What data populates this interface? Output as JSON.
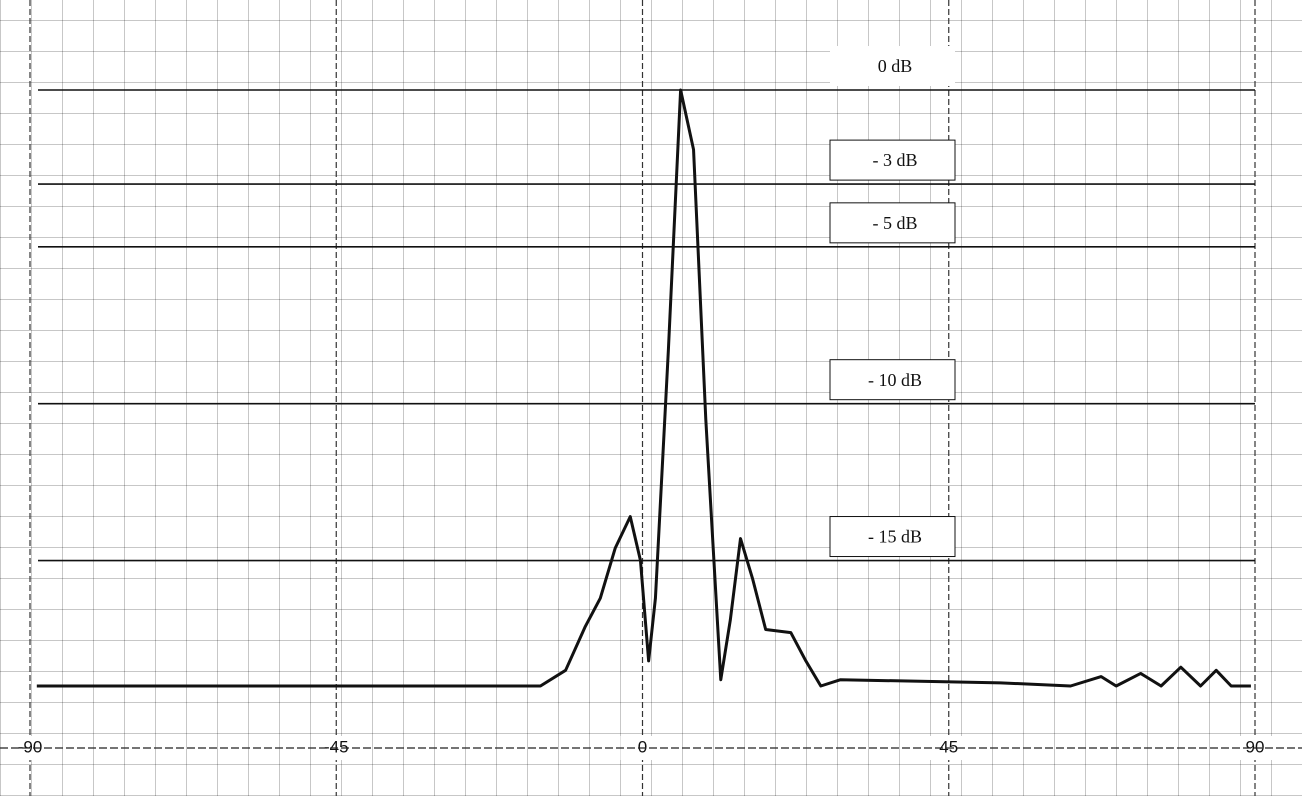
{
  "chart_data": {
    "type": "line",
    "x": [
      -89,
      -15,
      -11.3,
      -8.4,
      -6.2,
      -4,
      -1.8,
      -0.3,
      0.9,
      1.9,
      3.8,
      5.6,
      7.5,
      9.3,
      11.5,
      12.9,
      14.4,
      16.2,
      18.1,
      21.8,
      24,
      26.2,
      29.1,
      52.6,
      62.9,
      67.4,
      69.6,
      73.2,
      76.2,
      79.1,
      82,
      84.3,
      86.5,
      89.4
    ],
    "series": [
      {
        "color": "#111111",
        "values": [
          -19,
          -19,
          -18.5,
          -17.1,
          -16.2,
          -14.6,
          -13.6,
          -15,
          -18.2,
          -16.2,
          -8.3,
          0,
          -1.9,
          -10.5,
          -18.8,
          -16.9,
          -14.3,
          -15.6,
          -17.2,
          -17.3,
          -18.2,
          -19,
          -18.8,
          -18.9,
          -19,
          -18.7,
          -19,
          -18.6,
          -19,
          -18.4,
          -19,
          -18.5,
          -19,
          -19
        ]
      }
    ],
    "xlim": [
      -90,
      90
    ],
    "xticks": [
      -90,
      -45,
      0,
      45,
      90
    ],
    "ylim": [
      -19,
      0
    ],
    "yticks": [
      {
        "value": 0,
        "label": "0 dB"
      },
      {
        "value": -3,
        "label": "- 3 dB"
      },
      {
        "value": -5,
        "label": "- 5 dB"
      },
      {
        "value": -10,
        "label": "- 10 dB"
      },
      {
        "value": -15,
        "label": "- 15 dB"
      }
    ],
    "grid": true
  }
}
